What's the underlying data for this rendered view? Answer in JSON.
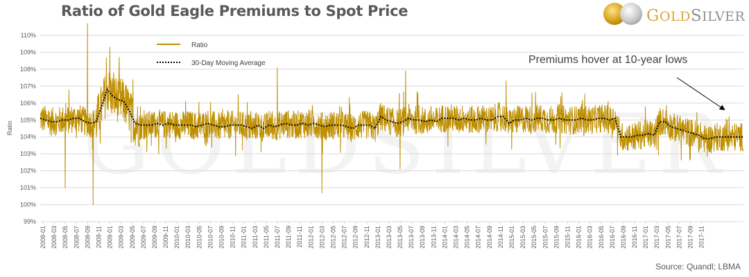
{
  "header": {
    "title": "Ratio of Gold Eagle Premiums to Spot Price",
    "logo": {
      "word_gold_initial": "G",
      "word_gold_rest": "OLD",
      "word_silver_initial": "S",
      "word_silver_rest": "ILVER",
      "watermark": "GOLDSILVER"
    }
  },
  "annotation": {
    "text": "Premiums hover at 10-year lows"
  },
  "source": "Source: Quandl; LBMA",
  "colors": {
    "ratio": "#bf8f00",
    "moving_average": "#000000",
    "grid": "#d9d9d9"
  },
  "chart_data": {
    "type": "line",
    "title": "Ratio of Gold Eagle Premiums to Spot Price",
    "xlabel": "",
    "ylabel": "Ratio",
    "ylim": [
      0.99,
      1.1
    ],
    "yticks": [
      "99%",
      "100%",
      "101%",
      "102%",
      "103%",
      "104%",
      "105%",
      "106%",
      "107%",
      "108%",
      "109%",
      "110%"
    ],
    "grid": true,
    "legend_position": "top-left",
    "legend": [
      "Ratio",
      "30-Day Moving Average"
    ],
    "xticks": [
      "2008-01",
      "2008-03",
      "2008-05",
      "2008-07",
      "2008-09",
      "2008-11",
      "2009-01",
      "2009-03",
      "2009-05",
      "2009-07",
      "2009-09",
      "2009-11",
      "2010-01",
      "2010-03",
      "2010-05",
      "2010-07",
      "2010-09",
      "2010-11",
      "2011-01",
      "2011-03",
      "2011-05",
      "2011-07",
      "2011-09",
      "2011-11",
      "2012-01",
      "2012-03",
      "2012-05",
      "2012-07",
      "2012-09",
      "2012-11",
      "2013-01",
      "2013-03",
      "2013-05",
      "2013-07",
      "2013-09",
      "2013-11",
      "2014-01",
      "2014-03",
      "2014-05",
      "2014-07",
      "2014-09",
      "2014-11",
      "2015-01",
      "2015-03",
      "2015-05",
      "2015-07",
      "2015-09",
      "2015-11",
      "2016-01",
      "2016-03",
      "2016-05",
      "2016-07",
      "2016-09",
      "2016-11",
      "2017-01",
      "2017-03",
      "2017-05",
      "2017-07",
      "2017-09",
      "2017-11"
    ],
    "x_range": [
      "2008-01",
      "2017-12"
    ],
    "series": [
      {
        "name": "30-Day Moving Average",
        "style": "dotted",
        "monthly_values": [
          1.051,
          1.05,
          1.049,
          1.049,
          1.05,
          1.05,
          1.051,
          1.051,
          1.049,
          1.048,
          1.049,
          1.058,
          1.068,
          1.064,
          1.062,
          1.061,
          1.055,
          1.048,
          1.047,
          1.047,
          1.047,
          1.048,
          1.047,
          1.048,
          1.047,
          1.047,
          1.047,
          1.047,
          1.046,
          1.047,
          1.048,
          1.047,
          1.046,
          1.046,
          1.047,
          1.047,
          1.047,
          1.046,
          1.045,
          1.047,
          1.045,
          1.047,
          1.046,
          1.047,
          1.048,
          1.047,
          1.047,
          1.048,
          1.047,
          1.048,
          1.047,
          1.046,
          1.047,
          1.047,
          1.047,
          1.046,
          1.045,
          1.047,
          1.047,
          1.047,
          1.045,
          1.052,
          1.05,
          1.049,
          1.048,
          1.049,
          1.051,
          1.05,
          1.05,
          1.049,
          1.05,
          1.049,
          1.051,
          1.051,
          1.051,
          1.05,
          1.051,
          1.05,
          1.05,
          1.051,
          1.05,
          1.05,
          1.052,
          1.052,
          1.048,
          1.05,
          1.05,
          1.051,
          1.05,
          1.051,
          1.051,
          1.05,
          1.05,
          1.051,
          1.05,
          1.05,
          1.05,
          1.051,
          1.05,
          1.05,
          1.051,
          1.051,
          1.05,
          1.051,
          1.04,
          1.04,
          1.04,
          1.041,
          1.041,
          1.042,
          1.041,
          1.049,
          1.049,
          1.046,
          1.045,
          1.044,
          1.043,
          1.042,
          1.041,
          1.039,
          1.039,
          1.04,
          1.04,
          1.04,
          1.04,
          1.04
        ]
      },
      {
        "name": "Ratio",
        "style": "solid",
        "notable_points": [
          {
            "date": "2008-05",
            "value": 1.01
          },
          {
            "date": "2008-09",
            "value": 1.107
          },
          {
            "date": "2008-10",
            "value": 1.0
          },
          {
            "date": "2009-01",
            "value": 1.093
          },
          {
            "date": "2011-07",
            "value": 1.081
          },
          {
            "date": "2012-03",
            "value": 1.007
          },
          {
            "date": "2013-06",
            "value": 1.079
          },
          {
            "date": "2013-05",
            "value": 1.021
          },
          {
            "date": "2014-12",
            "value": 1.073
          },
          {
            "date": "2017-09",
            "value": 1.027
          }
        ],
        "noise_amplitude": 0.012
      }
    ]
  }
}
